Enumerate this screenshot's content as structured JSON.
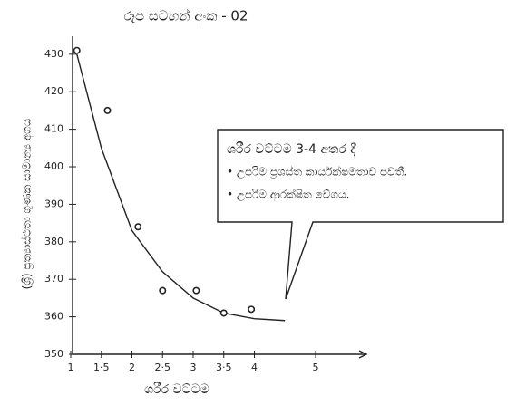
{
  "chart_data": {
    "type": "scatter",
    "title": "රූප සටහන් අංක - 02",
    "x_label": "ශරීර වට්ටම",
    "y_label": "(ශ්‍රී) ප්‍රත්‍යාස්ථතා ගුණක සාමාන්‍ය අගය",
    "xlim": [
      1,
      5.8
    ],
    "ylim": [
      350,
      436
    ],
    "xticks": [
      1,
      {
        "value": 1.5,
        "label": "1·5"
      },
      2,
      {
        "value": 2.5,
        "label": "2·5"
      },
      3,
      {
        "value": 3.5,
        "label": "3·5"
      },
      4,
      5
    ],
    "yticks": [
      350,
      360,
      370,
      380,
      390,
      400,
      410,
      420,
      430
    ],
    "points": {
      "x": [
        1.1,
        1.6,
        2.1,
        2.5,
        3.05,
        3.5,
        3.95
      ],
      "y": [
        431,
        415,
        384,
        367,
        367,
        361,
        362
      ]
    },
    "curve": {
      "x": [
        1.1,
        1.5,
        2,
        2.5,
        3,
        3.5,
        4,
        4.5
      ],
      "y": [
        430,
        405,
        383,
        372,
        365,
        361,
        359.5,
        359
      ]
    },
    "color": "#222",
    "annotation": {
      "lines": [
        "ශරීර වට්ටම 3-4 අතර දී",
        "• උපරිම ප්‍රශස්ත කාර්යක්ෂමතාව පවතී.",
        "• උපරිම ආරක්ෂිත වේගය."
      ]
    }
  }
}
